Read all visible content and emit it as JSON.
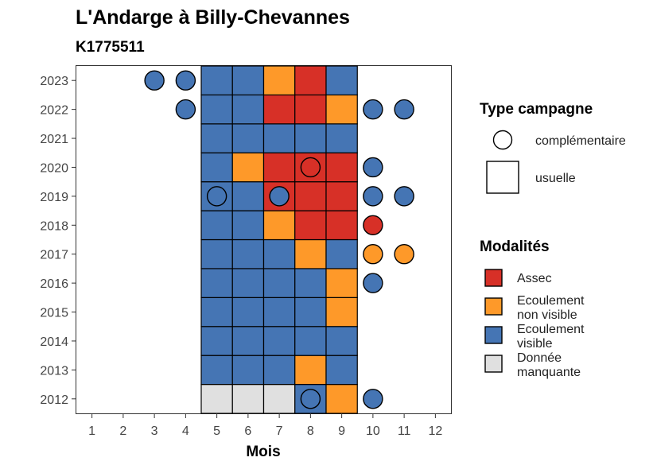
{
  "chart_data": {
    "type": "heatmap",
    "title": "L'Andarge à Billy-Chevannes",
    "subtitle": "K1775511",
    "xlabel": "Mois",
    "ylabel": "",
    "x_ticks": [
      "1",
      "2",
      "3",
      "4",
      "5",
      "6",
      "7",
      "8",
      "9",
      "10",
      "11",
      "12"
    ],
    "y_ticks": [
      "2012",
      "2013",
      "2014",
      "2015",
      "2016",
      "2017",
      "2018",
      "2019",
      "2020",
      "2021",
      "2022",
      "2023"
    ],
    "xlim": [
      0.5,
      12.5
    ],
    "ylim": [
      2011.5,
      2023.5
    ],
    "colors": {
      "Assec": "#d73027",
      "Ecoulement non visible": "#fe9929",
      "Ecoulement visible": "#4575b4",
      "Donnée manquante": "#e0e0e0"
    },
    "legend": {
      "campaign_title": "Type campagne",
      "campaign_items": [
        "complémentaire",
        "usuelle"
      ],
      "modality_title": "Modalités",
      "modality_items": [
        {
          "key": "Assec",
          "lines": [
            "Assec"
          ]
        },
        {
          "key": "Ecoulement non visible",
          "lines": [
            "Ecoulement",
            "non visible"
          ]
        },
        {
          "key": "Ecoulement visible",
          "lines": [
            "Ecoulement",
            "visible"
          ]
        },
        {
          "key": "Donnée manquante",
          "lines": [
            "Donnée",
            "manquante"
          ]
        }
      ],
      "position": "right"
    },
    "usuelle": [
      {
        "year": 2012,
        "months": [
          "Donnée manquante",
          "Donnée manquante",
          "Donnée manquante",
          "Ecoulement visible",
          "Ecoulement non visible"
        ]
      },
      {
        "year": 2013,
        "months": [
          "Ecoulement visible",
          "Ecoulement visible",
          "Ecoulement visible",
          "Ecoulement non visible",
          "Ecoulement visible"
        ]
      },
      {
        "year": 2014,
        "months": [
          "Ecoulement visible",
          "Ecoulement visible",
          "Ecoulement visible",
          "Ecoulement visible",
          "Ecoulement visible"
        ]
      },
      {
        "year": 2015,
        "months": [
          "Ecoulement visible",
          "Ecoulement visible",
          "Ecoulement visible",
          "Ecoulement visible",
          "Ecoulement non visible"
        ]
      },
      {
        "year": 2016,
        "months": [
          "Ecoulement visible",
          "Ecoulement visible",
          "Ecoulement visible",
          "Ecoulement visible",
          "Ecoulement non visible"
        ]
      },
      {
        "year": 2017,
        "months": [
          "Ecoulement visible",
          "Ecoulement visible",
          "Ecoulement visible",
          "Ecoulement non visible",
          "Ecoulement visible"
        ]
      },
      {
        "year": 2018,
        "months": [
          "Ecoulement visible",
          "Ecoulement visible",
          "Ecoulement non visible",
          "Assec",
          "Assec"
        ]
      },
      {
        "year": 2019,
        "months": [
          "Ecoulement visible",
          "Ecoulement visible",
          "Assec",
          "Assec",
          "Assec"
        ]
      },
      {
        "year": 2020,
        "months": [
          "Ecoulement visible",
          "Ecoulement non visible",
          "Assec",
          "Assec",
          "Assec"
        ]
      },
      {
        "year": 2021,
        "months": [
          "Ecoulement visible",
          "Ecoulement visible",
          "Ecoulement visible",
          "Ecoulement visible",
          "Ecoulement visible"
        ]
      },
      {
        "year": 2022,
        "months": [
          "Ecoulement visible",
          "Ecoulement visible",
          "Assec",
          "Assec",
          "Ecoulement non visible"
        ]
      },
      {
        "year": 2023,
        "months": [
          "Ecoulement visible",
          "Ecoulement visible",
          "Ecoulement non visible",
          "Assec",
          "Ecoulement visible"
        ]
      }
    ],
    "usuelle_first_month": 5,
    "complementaire": [
      {
        "year": 2012,
        "month": 8,
        "value": "Ecoulement visible"
      },
      {
        "year": 2012,
        "month": 10,
        "value": "Ecoulement visible"
      },
      {
        "year": 2016,
        "month": 10,
        "value": "Ecoulement visible"
      },
      {
        "year": 2017,
        "month": 10,
        "value": "Ecoulement non visible"
      },
      {
        "year": 2017,
        "month": 11,
        "value": "Ecoulement non visible"
      },
      {
        "year": 2018,
        "month": 10,
        "value": "Assec"
      },
      {
        "year": 2019,
        "month": 5,
        "value": "Ecoulement visible"
      },
      {
        "year": 2019,
        "month": 7,
        "value": "Ecoulement visible"
      },
      {
        "year": 2019,
        "month": 10,
        "value": "Ecoulement visible"
      },
      {
        "year": 2019,
        "month": 11,
        "value": "Ecoulement visible"
      },
      {
        "year": 2020,
        "month": 8,
        "value": "Assec"
      },
      {
        "year": 2020,
        "month": 10,
        "value": "Ecoulement visible"
      },
      {
        "year": 2022,
        "month": 4,
        "value": "Ecoulement visible"
      },
      {
        "year": 2022,
        "month": 10,
        "value": "Ecoulement visible"
      },
      {
        "year": 2022,
        "month": 11,
        "value": "Ecoulement visible"
      },
      {
        "year": 2023,
        "month": 3,
        "value": "Ecoulement visible"
      },
      {
        "year": 2023,
        "month": 4,
        "value": "Ecoulement visible"
      }
    ]
  }
}
